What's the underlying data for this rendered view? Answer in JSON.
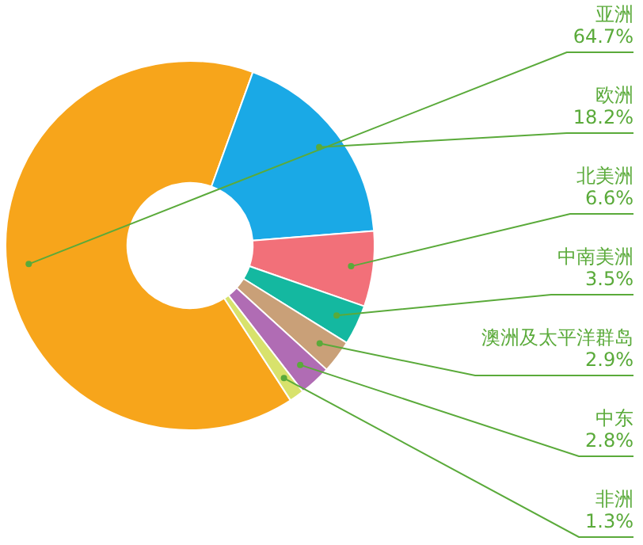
{
  "chart_data": {
    "type": "donut",
    "categories": [
      "亚洲",
      "欧洲",
      "北美洲",
      "中南美洲",
      "澳洲及太平洋群岛",
      "中东",
      "非洲"
    ],
    "values": [
      64.7,
      18.2,
      6.6,
      3.5,
      2.9,
      2.8,
      1.3
    ],
    "value_labels": [
      "64.7%",
      "18.2%",
      "6.6%",
      "3.5%",
      "2.9%",
      "2.8%",
      "1.3%"
    ],
    "colors": [
      "#f7a51b",
      "#1aa9e6",
      "#f27079",
      "#14b8a0",
      "#c9a078",
      "#b06cb4",
      "#d8e26c"
    ],
    "legend": false
  }
}
